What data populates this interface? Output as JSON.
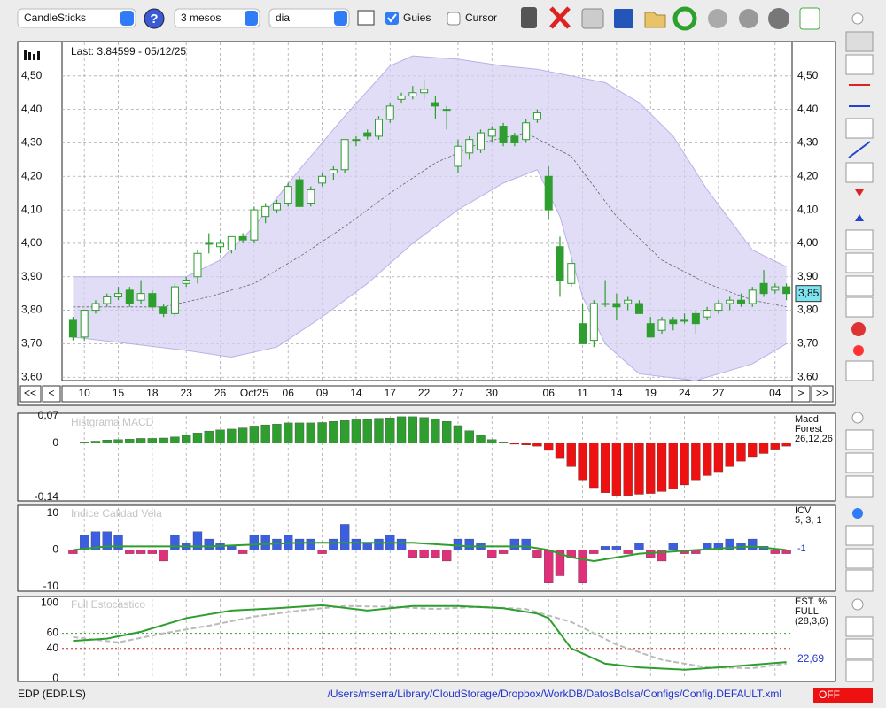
{
  "toolbar": {
    "chart_type": "CandleSticks",
    "period": "3 mesos",
    "interval": "dia",
    "guides": "Guies",
    "cursor": "Cursor"
  },
  "navigation": {
    "first": "<<",
    "prev": "<",
    "next": ">",
    "last": ">>"
  },
  "chart_data": [
    {
      "type": "candlestick",
      "last_label": "Last: 3.84599 - 05/12/25",
      "price_label": "3,85",
      "categories": [
        null,
        "10",
        null,
        null,
        "15",
        null,
        null,
        "18",
        null,
        null,
        "23",
        null,
        null,
        "26",
        null,
        null,
        "Oct25",
        null,
        null,
        "06",
        null,
        null,
        "09",
        null,
        null,
        "14",
        null,
        null,
        "17",
        null,
        null,
        "22",
        null,
        null,
        "27",
        null,
        null,
        "30",
        null,
        null,
        null,
        null,
        "06",
        null,
        null,
        "11",
        null,
        null,
        "14",
        null,
        null,
        "19",
        null,
        null,
        "24",
        null,
        null,
        "27",
        null,
        null,
        null,
        null,
        "04",
        null
      ],
      "ohlc": [
        [
          3.77,
          3.78,
          3.71,
          3.72
        ],
        [
          3.72,
          3.8,
          3.71,
          3.8
        ],
        [
          3.8,
          3.83,
          3.79,
          3.82
        ],
        [
          3.82,
          3.85,
          3.81,
          3.84
        ],
        [
          3.84,
          3.87,
          3.83,
          3.85
        ],
        [
          3.86,
          3.87,
          3.81,
          3.82
        ],
        [
          3.83,
          3.89,
          3.82,
          3.85
        ],
        [
          3.85,
          3.86,
          3.8,
          3.81
        ],
        [
          3.81,
          3.82,
          3.78,
          3.79
        ],
        [
          3.79,
          3.88,
          3.78,
          3.87
        ],
        [
          3.88,
          3.9,
          3.87,
          3.89
        ],
        [
          3.9,
          3.98,
          3.88,
          3.97
        ],
        [
          4.0,
          4.03,
          3.97,
          4.0
        ],
        [
          3.99,
          4.01,
          3.97,
          4.0
        ],
        [
          3.98,
          4.02,
          3.97,
          4.02
        ],
        [
          4.02,
          4.03,
          4.0,
          4.01
        ],
        [
          4.01,
          4.11,
          4.0,
          4.1
        ],
        [
          4.08,
          4.12,
          4.06,
          4.11
        ],
        [
          4.1,
          4.13,
          4.09,
          4.12
        ],
        [
          4.12,
          4.18,
          4.11,
          4.17
        ],
        [
          4.19,
          4.2,
          4.11,
          4.11
        ],
        [
          4.12,
          4.17,
          4.11,
          4.16
        ],
        [
          4.18,
          4.21,
          4.17,
          4.2
        ],
        [
          4.21,
          4.23,
          4.19,
          4.22
        ],
        [
          4.22,
          4.31,
          4.21,
          4.31
        ],
        [
          4.31,
          4.32,
          4.29,
          4.31
        ],
        [
          4.33,
          4.34,
          4.31,
          4.32
        ],
        [
          4.32,
          4.38,
          4.31,
          4.37
        ],
        [
          4.37,
          4.42,
          4.36,
          4.41
        ],
        [
          4.43,
          4.45,
          4.42,
          4.44
        ],
        [
          4.44,
          4.47,
          4.43,
          4.45
        ],
        [
          4.45,
          4.49,
          4.43,
          4.46
        ],
        [
          4.42,
          4.44,
          4.37,
          4.41
        ],
        [
          4.4,
          4.41,
          4.34,
          4.4
        ],
        [
          4.23,
          4.31,
          4.21,
          4.29
        ],
        [
          4.27,
          4.32,
          4.25,
          4.31
        ],
        [
          4.28,
          4.34,
          4.27,
          4.33
        ],
        [
          4.32,
          4.35,
          4.3,
          4.34
        ],
        [
          4.35,
          4.36,
          4.29,
          4.3
        ],
        [
          4.32,
          4.33,
          4.29,
          4.3
        ],
        [
          4.31,
          4.37,
          4.3,
          4.36
        ],
        [
          4.37,
          4.4,
          4.36,
          4.39
        ],
        [
          4.2,
          4.23,
          4.07,
          4.1
        ],
        [
          3.99,
          4.02,
          3.84,
          3.89
        ],
        [
          3.88,
          3.95,
          3.87,
          3.94
        ],
        [
          3.76,
          3.82,
          3.7,
          3.7
        ],
        [
          3.71,
          3.83,
          3.69,
          3.82
        ],
        [
          3.82,
          3.89,
          3.81,
          3.82
        ],
        [
          3.82,
          3.85,
          3.77,
          3.81
        ],
        [
          3.82,
          3.84,
          3.8,
          3.83
        ],
        [
          3.82,
          3.83,
          3.79,
          3.79
        ],
        [
          3.76,
          3.78,
          3.72,
          3.72
        ],
        [
          3.74,
          3.78,
          3.73,
          3.77
        ],
        [
          3.77,
          3.78,
          3.74,
          3.76
        ],
        [
          3.77,
          3.79,
          3.76,
          3.77
        ],
        [
          3.79,
          3.8,
          3.73,
          3.76
        ],
        [
          3.78,
          3.81,
          3.77,
          3.8
        ],
        [
          3.8,
          3.83,
          3.79,
          3.82
        ],
        [
          3.82,
          3.84,
          3.8,
          3.83
        ],
        [
          3.83,
          3.85,
          3.81,
          3.82
        ],
        [
          3.82,
          3.87,
          3.81,
          3.86
        ],
        [
          3.88,
          3.92,
          3.84,
          3.85
        ],
        [
          3.86,
          3.88,
          3.85,
          3.87
        ],
        [
          3.87,
          3.88,
          3.83,
          3.85
        ]
      ],
      "up_color": "#ffffff",
      "down_color": "#2e9e2e",
      "wick_color": "#2e9e2e",
      "band": {
        "color": "#d4cff3",
        "edge_color": "#b9b2e6",
        "x_upper": [
          0,
          10,
          13,
          16,
          20,
          24,
          28,
          30,
          34,
          38,
          41,
          44,
          47,
          50,
          53,
          56,
          60,
          63
        ],
        "upper": [
          3.9,
          3.9,
          3.95,
          4.05,
          4.22,
          4.38,
          4.53,
          4.56,
          4.55,
          4.53,
          4.52,
          4.5,
          4.48,
          4.42,
          4.32,
          4.16,
          3.98,
          3.93
        ],
        "x_lower": [
          0,
          5,
          10,
          14,
          18,
          22,
          26,
          30,
          34,
          38,
          41,
          43,
          45,
          47,
          50,
          55,
          60,
          63
        ],
        "lower": [
          3.72,
          3.7,
          3.68,
          3.66,
          3.69,
          3.78,
          3.88,
          4.0,
          4.1,
          4.18,
          4.22,
          4.08,
          3.84,
          3.7,
          3.61,
          3.59,
          3.64,
          3.7
        ]
      },
      "moving_average": {
        "color": "#666666",
        "x": [
          0,
          8,
          12,
          16,
          20,
          24,
          28,
          32,
          36,
          40,
          44,
          48,
          52,
          56,
          60,
          63
        ],
        "values": [
          3.81,
          3.81,
          3.84,
          3.88,
          3.96,
          4.05,
          4.15,
          4.24,
          4.3,
          4.33,
          4.26,
          4.08,
          3.95,
          3.88,
          3.83,
          3.81
        ]
      },
      "ylim": [
        3.59,
        4.6
      ],
      "yticks": [
        {
          "value": 3.6,
          "label": "3,60"
        },
        {
          "value": 3.7,
          "label": "3,70"
        },
        {
          "value": 3.8,
          "label": "3,80"
        },
        {
          "value": 3.9,
          "label": "3,90"
        },
        {
          "value": 4.0,
          "label": "4,00"
        },
        {
          "value": 4.1,
          "label": "4,10"
        },
        {
          "value": 4.2,
          "label": "4,20"
        },
        {
          "value": 4.3,
          "label": "4,30"
        },
        {
          "value": 4.4,
          "label": "4,40"
        },
        {
          "value": 4.5,
          "label": "4,50"
        }
      ],
      "grid": true
    },
    {
      "type": "bar",
      "title": "Histgrama MACD",
      "side_labels": [
        "Macd",
        "Forest",
        "26,12,26"
      ],
      "values": [
        0.001,
        0.003,
        0.005,
        0.008,
        0.009,
        0.01,
        0.012,
        0.012,
        0.013,
        0.016,
        0.02,
        0.026,
        0.031,
        0.034,
        0.036,
        0.039,
        0.044,
        0.047,
        0.049,
        0.052,
        0.052,
        0.052,
        0.053,
        0.056,
        0.058,
        0.06,
        0.061,
        0.064,
        0.065,
        0.068,
        0.068,
        0.066,
        0.062,
        0.056,
        0.045,
        0.032,
        0.02,
        0.009,
        0.003,
        -0.003,
        -0.005,
        -0.008,
        -0.019,
        -0.04,
        -0.061,
        -0.095,
        -0.115,
        -0.128,
        -0.135,
        -0.135,
        -0.132,
        -0.13,
        -0.125,
        -0.119,
        -0.108,
        -0.095,
        -0.084,
        -0.074,
        -0.061,
        -0.047,
        -0.035,
        -0.027,
        -0.016,
        -0.008
      ],
      "positive_color": "#2e9e2e",
      "negative_color": "#ee1111",
      "ylim": [
        -0.14,
        0.07
      ],
      "yticks": [
        {
          "value": -0.14,
          "label": "-0,14"
        },
        0,
        {
          "value": 0.07,
          "label": "0,07"
        }
      ]
    },
    {
      "type": "bar",
      "title": "Indice Calidad Vela",
      "side_labels": [
        "ICV",
        "5, 3, 1"
      ],
      "current_label": "-1",
      "values": [
        -1,
        4,
        5,
        5,
        4,
        -1,
        -1,
        -1,
        -3,
        4,
        2,
        5,
        3,
        2,
        1,
        -1,
        4,
        4,
        3,
        4,
        3,
        3,
        -1,
        3,
        7,
        3,
        2,
        3,
        4,
        3,
        -2,
        -2,
        -2,
        -3,
        3,
        3,
        2,
        -2,
        -1,
        3,
        3,
        -2,
        -9,
        -7,
        -2,
        -9,
        -1,
        1,
        1,
        -1,
        2,
        -2,
        -3,
        2,
        -1,
        -1,
        2,
        2,
        3,
        2,
        3,
        1,
        -1,
        -1
      ],
      "positive_color": "#3b5fe0",
      "negative_color": "#e0307a",
      "line": {
        "color": "#2e9e2e",
        "x": [
          0,
          3,
          8,
          12,
          20,
          30,
          35,
          40,
          42,
          44,
          46,
          50,
          55,
          60,
          63
        ],
        "values": [
          0,
          1,
          1,
          1,
          2,
          2,
          1,
          1,
          0,
          -2,
          -3,
          -1,
          0,
          1,
          0
        ]
      },
      "ylim": [
        -10,
        10
      ],
      "yticks": [
        -10,
        0,
        10
      ]
    },
    {
      "type": "line",
      "title": "Full Estocastico",
      "side_labels": [
        "EST. %",
        "FULL",
        "(28,3,6)"
      ],
      "current_label": "22,69",
      "series": [
        {
          "color": "#bbbbbb",
          "dashed": true,
          "x": [
            0,
            4,
            8,
            12,
            16,
            20,
            24,
            28,
            32,
            36,
            40,
            44,
            48,
            52,
            56,
            60,
            63
          ],
          "values": [
            55,
            48,
            60,
            70,
            82,
            90,
            96,
            95,
            92,
            95,
            92,
            75,
            45,
            25,
            15,
            14,
            20
          ]
        },
        {
          "color": "#2e9e2e",
          "dashed": false,
          "x": [
            0,
            3,
            6,
            10,
            14,
            18,
            22,
            26,
            30,
            34,
            38,
            41,
            42,
            44,
            47,
            50,
            54,
            58,
            63
          ],
          "values": [
            50,
            53,
            62,
            80,
            90,
            93,
            97,
            90,
            96,
            96,
            93,
            86,
            80,
            40,
            20,
            15,
            12,
            16,
            22
          ]
        }
      ],
      "ylim": [
        0,
        105
      ],
      "yticks": [
        0,
        40,
        60,
        100
      ],
      "grid_colors": [
        "#2e9e2e",
        "#cc2222"
      ]
    }
  ],
  "footer": {
    "symbol": "EDP (EDP.LS)",
    "config_path": "/Users/mserra/Library/CloudStorage/Dropbox/WorkDB/DatosBolsa/Configs/Config.DEFAULT.xml",
    "status": "OFF"
  }
}
